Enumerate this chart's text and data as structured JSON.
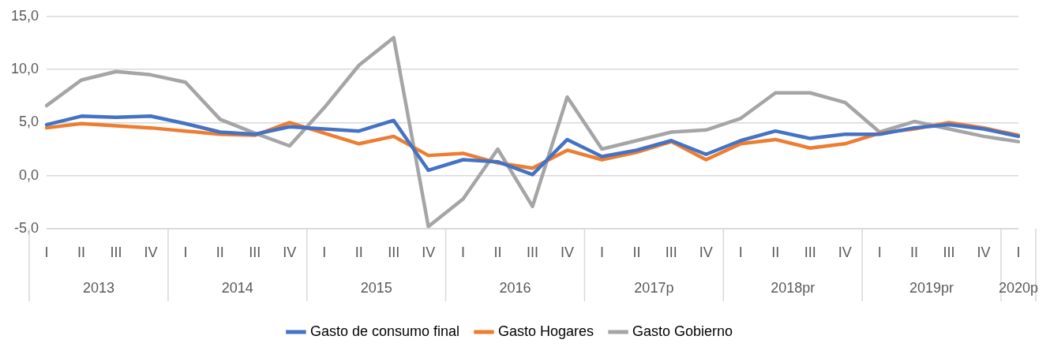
{
  "chart_data": {
    "type": "line",
    "categories": [
      "I",
      "II",
      "III",
      "IV",
      "I",
      "II",
      "III",
      "IV",
      "I",
      "II",
      "III",
      "IV",
      "I",
      "II",
      "III",
      "IV",
      "I",
      "II",
      "III",
      "IV",
      "I",
      "II",
      "III",
      "IV",
      "I",
      "II",
      "III",
      "IV",
      "I"
    ],
    "series": [
      {
        "name": "Gasto de consumo final",
        "color": "#4472c4",
        "values": [
          4.8,
          5.6,
          5.5,
          5.6,
          4.9,
          4.1,
          3.9,
          4.6,
          4.4,
          4.2,
          5.2,
          0.5,
          1.5,
          1.3,
          0.1,
          3.4,
          1.8,
          2.4,
          3.3,
          2.0,
          3.3,
          4.2,
          3.5,
          3.9,
          3.9,
          4.5,
          4.8,
          4.4,
          3.7
        ]
      },
      {
        "name": "Gasto Hogares",
        "color": "#ed7d31",
        "values": [
          4.5,
          4.9,
          4.7,
          4.5,
          4.2,
          3.9,
          3.8,
          5.0,
          4.0,
          3.0,
          3.7,
          1.9,
          2.1,
          1.2,
          0.7,
          2.4,
          1.5,
          2.2,
          3.2,
          1.5,
          3.0,
          3.4,
          2.6,
          3.0,
          4.0,
          4.4,
          5.0,
          4.5,
          3.8
        ]
      },
      {
        "name": "Gasto Gobierno",
        "color": "#a5a5a5",
        "values": [
          6.6,
          9.0,
          9.8,
          9.5,
          8.8,
          5.3,
          4.0,
          2.8,
          6.4,
          10.4,
          13.0,
          -4.8,
          -2.2,
          2.5,
          -2.9,
          7.4,
          2.5,
          3.3,
          4.1,
          4.3,
          5.4,
          7.8,
          7.8,
          6.9,
          4.1,
          5.1,
          4.4,
          3.7,
          3.2
        ]
      }
    ],
    "annotations": [
      "2013",
      "2014",
      "2015",
      "2016",
      "2017p",
      "2018pr",
      "2019pr",
      "2020p"
    ],
    "ylim": [
      -5,
      15
    ],
    "yticks": [
      {
        "value": -5,
        "label": "-5,0"
      },
      {
        "value": 0,
        "label": "0,0"
      },
      {
        "value": 5,
        "label": "5,0"
      },
      {
        "value": 10,
        "label": "10,0"
      },
      {
        "value": 15,
        "label": "15,0"
      }
    ],
    "grid": "y",
    "legend": "bottom",
    "marker": "none",
    "line_style": "solid"
  }
}
